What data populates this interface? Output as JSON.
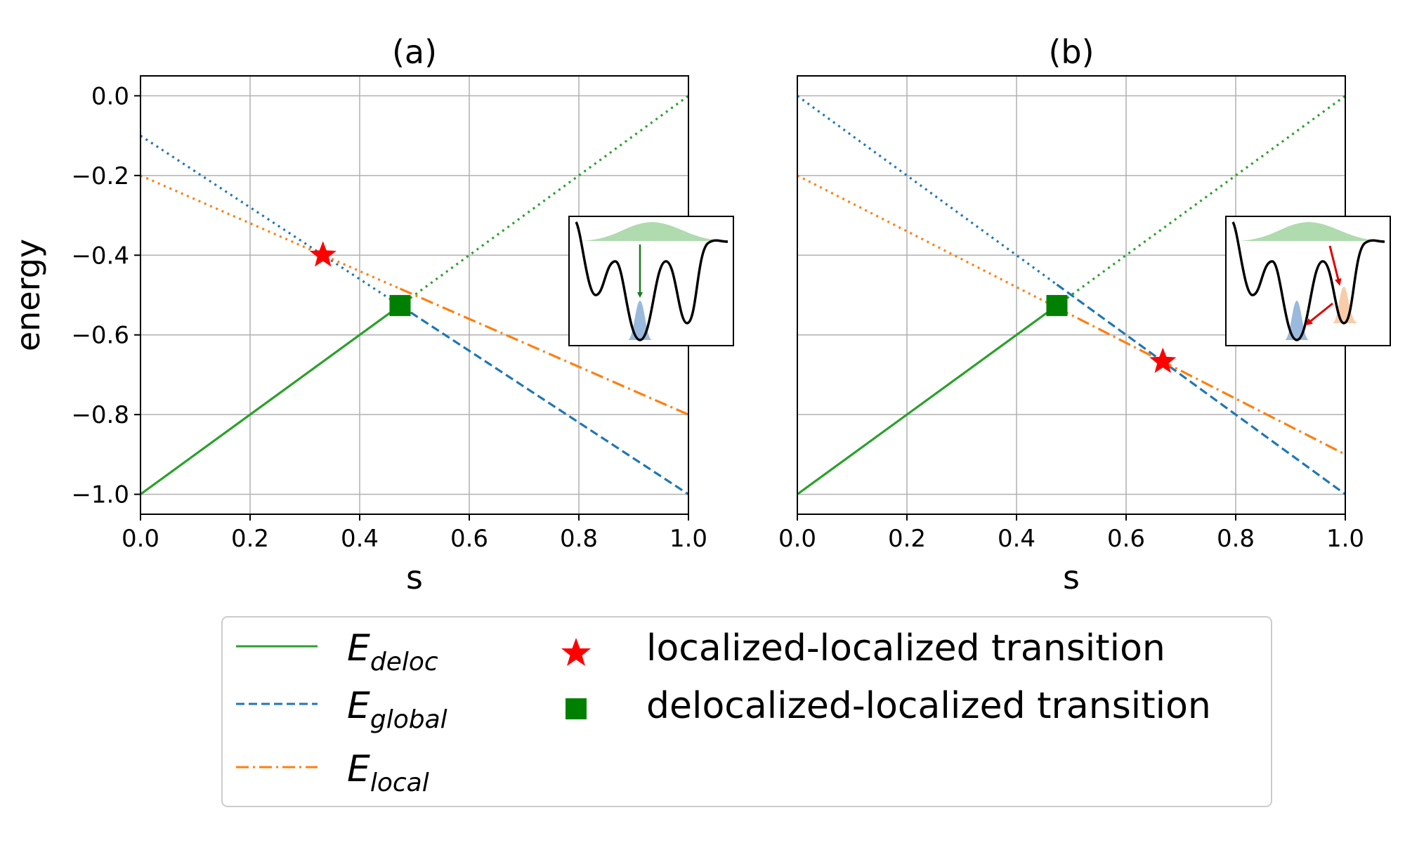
{
  "chart_data": [
    {
      "type": "line",
      "title": "(a)",
      "xlabel": "s",
      "ylabel": "energy",
      "xlim": [
        0,
        1
      ],
      "ylim": [
        -1.05,
        0.05
      ],
      "grid": true,
      "x_ticks": [
        "0.0",
        "0.2",
        "0.4",
        "0.6",
        "0.8",
        "1.0"
      ],
      "y_ticks": [
        "0.0",
        "−0.2",
        "−0.4",
        "−0.6",
        "−0.8",
        "−1.0"
      ],
      "series": [
        {
          "name": "E_deloc",
          "color": "#2ca02c",
          "segments": [
            {
              "style": "solid",
              "x": [
                0,
                0.4737
              ],
              "y": [
                -1.0,
                -0.5263
              ]
            },
            {
              "style": "dotted",
              "x": [
                0.4737,
                1.0
              ],
              "y": [
                -0.5263,
                0.0
              ]
            }
          ]
        },
        {
          "name": "E_global",
          "color": "#1f77b4",
          "segments": [
            {
              "style": "dotted",
              "x": [
                0,
                0.4737
              ],
              "y": [
                -0.1,
                -0.5263
              ]
            },
            {
              "style": "dashed",
              "x": [
                0.4737,
                1.0
              ],
              "y": [
                -0.5263,
                -1.0
              ]
            }
          ]
        },
        {
          "name": "E_local",
          "color": "#ff7f0e",
          "segments": [
            {
              "style": "dotted",
              "x": [
                0,
                0.4737
              ],
              "y": [
                -0.2,
                -0.4842
              ]
            },
            {
              "style": "dashdot",
              "x": [
                0.4737,
                1.0
              ],
              "y": [
                -0.4842,
                -0.8
              ]
            }
          ]
        }
      ],
      "markers": [
        {
          "name": "localized-localized transition",
          "shape": "star",
          "color": "#ff0000",
          "x": 0.333,
          "y": -0.4
        },
        {
          "name": "delocalized-localized transition",
          "shape": "square",
          "color": "#008000",
          "x": 0.4737,
          "y": -0.5263
        }
      ],
      "inset": {
        "arrows": "green arrow from delocalized state down into the global well"
      }
    },
    {
      "type": "line",
      "title": "(b)",
      "xlabel": "s",
      "ylabel": "",
      "xlim": [
        0,
        1
      ],
      "ylim": [
        -1.05,
        0.05
      ],
      "grid": true,
      "x_ticks": [
        "0.0",
        "0.2",
        "0.4",
        "0.6",
        "0.8",
        "1.0"
      ],
      "series": [
        {
          "name": "E_deloc",
          "color": "#2ca02c",
          "segments": [
            {
              "style": "solid",
              "x": [
                0,
                0.4737
              ],
              "y": [
                -1.0,
                -0.5263
              ]
            },
            {
              "style": "dotted",
              "x": [
                0.4737,
                1.0
              ],
              "y": [
                -0.5263,
                0.0
              ]
            }
          ]
        },
        {
          "name": "E_global",
          "color": "#1f77b4",
          "segments": [
            {
              "style": "dotted",
              "x": [
                0,
                0.4737
              ],
              "y": [
                0.0,
                -0.4737
              ]
            },
            {
              "style": "dashed",
              "x": [
                0.4737,
                1.0
              ],
              "y": [
                -0.4737,
                -1.0
              ]
            }
          ]
        },
        {
          "name": "E_local",
          "color": "#ff7f0e",
          "segments": [
            {
              "style": "dotted",
              "x": [
                0,
                0.4737
              ],
              "y": [
                -0.2,
                -0.5316
              ]
            },
            {
              "style": "dashdot",
              "x": [
                0.4737,
                1.0
              ],
              "y": [
                -0.5316,
                -0.9
              ]
            }
          ]
        }
      ],
      "markers": [
        {
          "name": "localized-localized transition",
          "shape": "star",
          "color": "#ff0000",
          "x": 0.667,
          "y": -0.667
        },
        {
          "name": "delocalized-localized transition",
          "shape": "square",
          "color": "#008000",
          "x": 0.4737,
          "y": -0.5263
        }
      ],
      "inset": {
        "arrows": "red arrows: delocalized state into local well, then local well into global well"
      }
    }
  ],
  "legend": {
    "placement": "bottom-center",
    "entries": [
      {
        "kind": "line",
        "style": "solid",
        "color": "#2ca02c",
        "label_main": "E",
        "label_sub": "deloc"
      },
      {
        "kind": "line",
        "style": "dashed",
        "color": "#1f77b4",
        "label_main": "E",
        "label_sub": "global"
      },
      {
        "kind": "line",
        "style": "dashdot",
        "color": "#ff7f0e",
        "label_main": "E",
        "label_sub": "local"
      },
      {
        "kind": "marker",
        "shape": "star",
        "color": "#ff0000",
        "label": "localized-localized transition"
      },
      {
        "kind": "marker",
        "shape": "square",
        "color": "#008000",
        "label": "delocalized-localized transition"
      }
    ]
  }
}
